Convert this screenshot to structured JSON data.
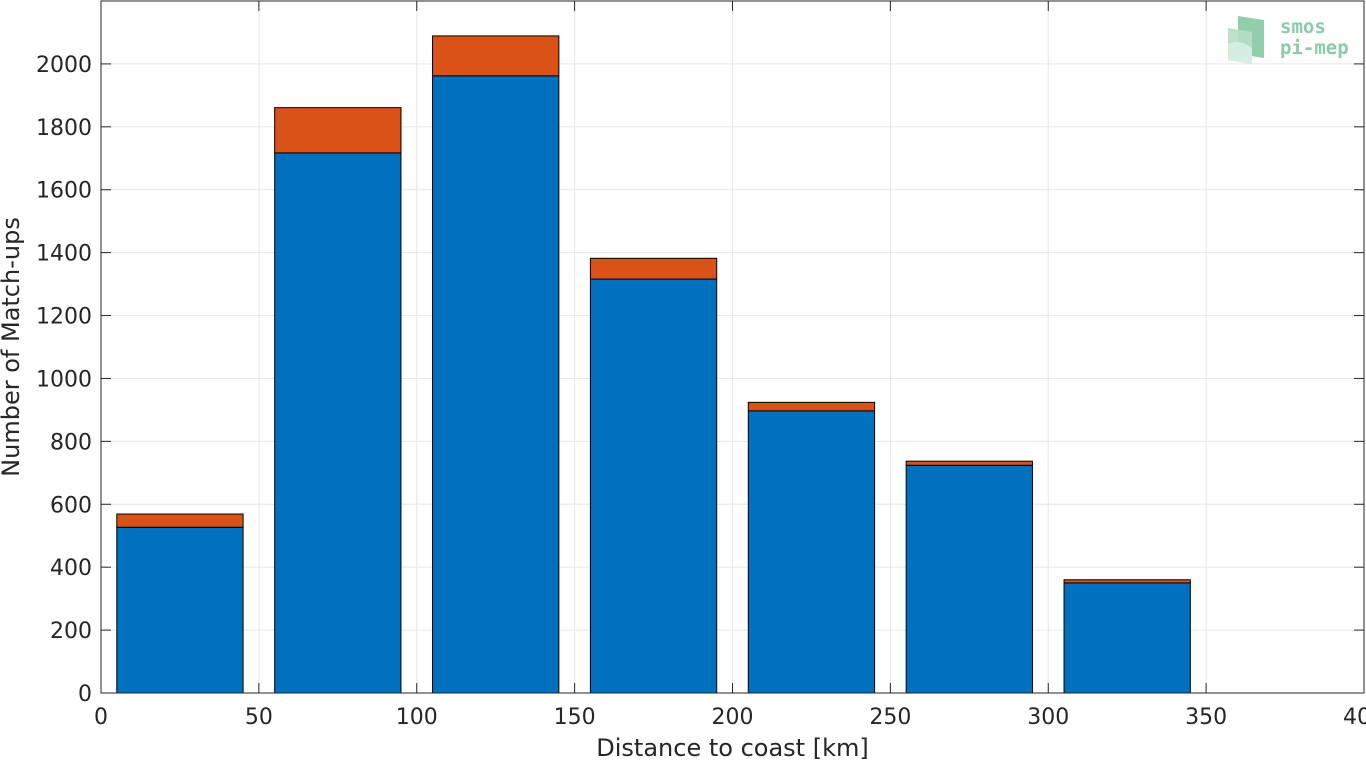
{
  "chart_data": {
    "type": "bar",
    "stacked": true,
    "x_bin_edges": [
      [
        5,
        45
      ],
      [
        55,
        95
      ],
      [
        105,
        145
      ],
      [
        155,
        195
      ],
      [
        205,
        245
      ],
      [
        255,
        295
      ],
      [
        305,
        345
      ]
    ],
    "series": [
      {
        "values": [
          527,
          1717,
          1962,
          1316,
          897,
          724,
          350
        ],
        "color": "#0072bd"
      },
      {
        "values": [
          42,
          144,
          127,
          66,
          27,
          13,
          10
        ],
        "color": "#d95319"
      }
    ],
    "xlabel": "Distance to coast [km]",
    "ylabel": "Number of Match-ups",
    "xlim": [
      0,
      400
    ],
    "ylim": [
      0,
      2200
    ],
    "xticks": [
      0,
      50,
      100,
      150,
      200,
      250,
      300,
      350,
      400
    ],
    "yticks": [
      0,
      200,
      400,
      600,
      800,
      1000,
      1200,
      1400,
      1600,
      1800,
      2000
    ],
    "grid": true
  },
  "logo": {
    "line1": "smos",
    "line2": "pi-mep"
  }
}
